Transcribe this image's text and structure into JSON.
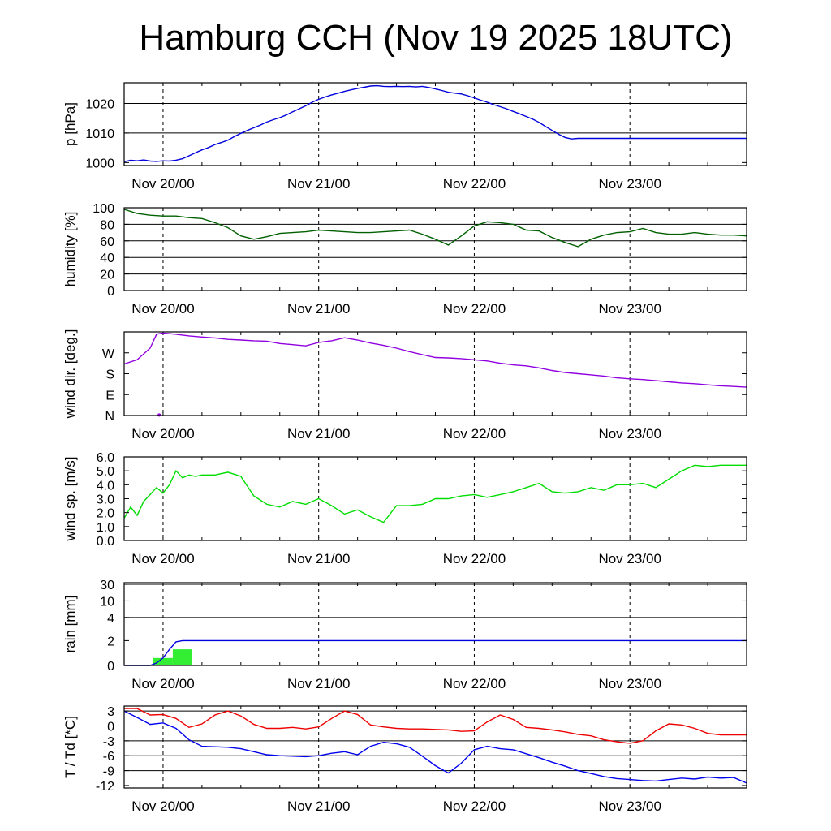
{
  "title": "Hamburg CCH (Nov 19 2025 18UTC)",
  "chart_data": [
    {
      "id": "pressure",
      "type": "line",
      "ylabel": "p [hPa]",
      "ylim": [
        999,
        1027
      ],
      "yticks": [
        1000,
        1010,
        1020
      ],
      "ytick_labels": [
        "1000",
        "1010",
        "1020"
      ],
      "grid": [
        1010,
        1020
      ],
      "xlabel_ticks": [
        "Nov 20/00",
        "Nov 21/00",
        "Nov 22/00",
        "Nov 23/00"
      ],
      "series": [
        {
          "name": "pressure",
          "color": "#0000dd",
          "x": [
            0,
            1,
            2,
            3,
            4,
            5,
            6,
            7,
            8,
            9,
            10,
            11,
            12,
            13,
            14,
            15,
            16,
            17,
            18,
            19,
            20,
            21,
            22,
            23,
            24,
            25,
            26,
            27,
            28,
            29,
            30,
            31,
            32,
            33,
            34,
            35,
            36,
            37,
            38,
            39,
            40,
            41,
            42,
            43,
            44,
            45,
            46,
            47,
            48,
            49,
            50,
            51,
            52,
            53,
            54,
            55,
            56,
            57,
            58,
            59,
            60,
            61,
            62,
            63,
            64,
            65,
            66,
            67,
            68,
            69,
            70,
            71,
            72,
            73,
            74,
            75,
            76,
            77,
            78,
            79,
            80,
            81,
            82,
            83,
            84,
            85,
            86,
            87,
            88,
            89,
            90,
            91,
            92,
            93,
            94,
            95,
            96
          ],
          "values": [
            1000.3,
            1000.8,
            1000.6,
            1000.9,
            1000.5,
            1000.4,
            1000.6,
            1000.5,
            1000.8,
            1001.3,
            1002.3,
            1003.3,
            1004.3,
            1005.1,
            1006.1,
            1006.8,
            1007.6,
            1008.8,
            1009.9,
            1010.9,
            1011.8,
            1012.7,
            1013.7,
            1014.5,
            1015.2,
            1016.1,
            1017.2,
            1018.2,
            1019.2,
            1020.4,
            1021.4,
            1022.2,
            1022.9,
            1023.5,
            1024.1,
            1024.6,
            1025.1,
            1025.5,
            1025.9,
            1026.0,
            1025.8,
            1025.7,
            1025.8,
            1025.7,
            1025.8,
            1025.6,
            1025.8,
            1025.4,
            1024.9,
            1024.4,
            1023.8,
            1023.5,
            1023.2,
            1022.6,
            1021.9,
            1021.1,
            1020.4,
            1019.6,
            1018.9,
            1018.2,
            1017.3,
            1016.5,
            1015.6,
            1014.7,
            1013.6,
            1012.2,
            1010.9,
            1009.6,
            1008.5,
            1008.0,
            1008.2,
            1008.2,
            1008.2,
            1008.2,
            1008.2,
            1008.2,
            1008.2,
            1008.2,
            1008.2,
            1008.2,
            1008.2,
            1008.2,
            1008.2,
            1008.2,
            1008.2,
            1008.2,
            1008.2,
            1008.2,
            1008.2,
            1008.2,
            1008.2,
            1008.2,
            1008.2,
            1008.2,
            1008.2,
            1008.2,
            1008.2
          ]
        }
      ]
    },
    {
      "id": "humidity",
      "type": "line",
      "ylabel": "humidity [%]",
      "ylim": [
        0,
        100
      ],
      "yticks": [
        0,
        20,
        40,
        60,
        80,
        100
      ],
      "ytick_labels": [
        "0",
        "20",
        "40",
        "60",
        "80",
        "100"
      ],
      "grid": [
        20,
        40,
        60,
        80
      ],
      "xlabel_ticks": [
        "Nov 20/00",
        "Nov 21/00",
        "Nov 22/00",
        "Nov 23/00"
      ],
      "series": [
        {
          "name": "relative humidity",
          "color": "#006000",
          "x": [
            0,
            2,
            4,
            6,
            8,
            10,
            12,
            14,
            16,
            18,
            20,
            22,
            24,
            26,
            28,
            30,
            32,
            34,
            36,
            38,
            40,
            42,
            44,
            46,
            48,
            50,
            52,
            54,
            56,
            58,
            60,
            62,
            64,
            66,
            68,
            70,
            72,
            74,
            76,
            78,
            80,
            82,
            84,
            86,
            88,
            90,
            92,
            94,
            96
          ],
          "values": [
            98,
            93,
            91,
            90,
            90,
            88,
            87,
            82,
            76,
            66,
            62,
            65,
            69,
            70,
            71,
            73,
            72,
            71,
            70,
            70,
            71,
            72,
            73,
            68,
            62,
            55,
            66,
            78,
            83,
            82,
            80,
            73,
            72,
            64,
            58,
            53,
            62,
            67,
            70,
            71,
            75,
            70,
            68,
            68,
            70,
            68,
            67,
            67,
            66
          ]
        }
      ]
    },
    {
      "id": "wind_direction",
      "type": "line",
      "ylabel": "wind dir. [deg.]",
      "ylim": [
        0,
        360
      ],
      "yticks": [
        0,
        90,
        180,
        270
      ],
      "ytick_labels": [
        "N",
        "E",
        "S",
        "W"
      ],
      "grid": [],
      "xlabel_ticks": [
        "Nov 20/00",
        "Nov 21/00",
        "Nov 22/00",
        "Nov 23/00"
      ],
      "series": [
        {
          "name": "wind direction",
          "color": "#9000e0",
          "x": [
            0,
            2,
            4,
            5,
            6,
            8,
            10,
            12,
            14,
            16,
            18,
            20,
            22,
            24,
            26,
            28,
            30,
            32,
            34,
            36,
            38,
            40,
            42,
            44,
            46,
            48,
            50,
            52,
            54,
            56,
            58,
            60,
            62,
            64,
            66,
            68,
            70,
            72,
            74,
            76,
            78,
            80,
            82,
            84,
            86,
            88,
            90,
            92,
            94,
            96
          ],
          "values": [
            222,
            240,
            290,
            350,
            355,
            350,
            343,
            338,
            334,
            328,
            325,
            322,
            320,
            310,
            305,
            300,
            315,
            322,
            335,
            325,
            312,
            302,
            290,
            275,
            262,
            250,
            248,
            245,
            240,
            235,
            225,
            218,
            214,
            205,
            194,
            185,
            180,
            175,
            170,
            162,
            158,
            155,
            150,
            145,
            140,
            137,
            132,
            128,
            125,
            122
          ]
        }
      ]
    },
    {
      "id": "wind_speed",
      "type": "line",
      "ylabel": "wind sp. [m/s]",
      "ylim": [
        0,
        6
      ],
      "yticks": [
        0,
        1,
        2,
        3,
        4,
        5,
        6
      ],
      "ytick_labels": [
        "0.0",
        "1.0",
        "2.0",
        "3.0",
        "4.0",
        "5.0",
        "6.0"
      ],
      "grid": [],
      "xlabel_ticks": [
        "Nov 20/00",
        "Nov 21/00",
        "Nov 22/00",
        "Nov 23/00"
      ],
      "series": [
        {
          "name": "wind speed",
          "color": "#00dd00",
          "x": [
            0,
            1,
            2,
            3,
            4,
            5,
            6,
            7,
            8,
            9,
            10,
            11,
            12,
            14,
            16,
            18,
            20,
            22,
            24,
            26,
            28,
            30,
            32,
            34,
            36,
            38,
            40,
            42,
            44,
            46,
            48,
            50,
            52,
            54,
            56,
            58,
            60,
            62,
            64,
            66,
            68,
            70,
            72,
            74,
            76,
            78,
            80,
            82,
            84,
            86,
            88,
            90,
            92,
            94,
            96
          ],
          "values": [
            1.6,
            2.4,
            1.8,
            2.8,
            3.3,
            3.8,
            3.4,
            4.0,
            5.0,
            4.5,
            4.7,
            4.6,
            4.7,
            4.7,
            4.9,
            4.6,
            3.2,
            2.6,
            2.4,
            2.8,
            2.6,
            3.0,
            2.5,
            1.9,
            2.2,
            1.7,
            1.3,
            2.5,
            2.5,
            2.6,
            3.0,
            3.0,
            3.2,
            3.3,
            3.1,
            3.3,
            3.5,
            3.8,
            4.1,
            3.5,
            3.4,
            3.5,
            3.8,
            3.6,
            4.0,
            4.0,
            4.1,
            3.8,
            4.4,
            5.0,
            5.4,
            5.3,
            5.4,
            5.4,
            5.4
          ]
        }
      ]
    },
    {
      "id": "rain",
      "type": "bar",
      "ylabel": "rain [mm]",
      "ylim": [
        0,
        30
      ],
      "scale": "nonlinear",
      "yticks": [
        0,
        2,
        4,
        10,
        30
      ],
      "ytick_labels": [
        "0",
        "2",
        "4",
        "10",
        "30"
      ],
      "grid": [
        4,
        10,
        30
      ],
      "xlabel_ticks": [
        "Nov 20/00",
        "Nov 21/00",
        "Nov 22/00",
        "Nov 23/00"
      ],
      "bars": [
        {
          "x_start": 4.5,
          "x_end": 7.5,
          "value": 0.6
        },
        {
          "x_start": 7.5,
          "x_end": 10.5,
          "value": 1.3
        }
      ],
      "series": [
        {
          "name": "accumulated rain",
          "color": "#0000dd",
          "x": [
            0,
            4,
            5,
            6,
            7,
            8,
            9,
            96
          ],
          "values": [
            0,
            0,
            0.2,
            0.6,
            1.3,
            1.9,
            2.0,
            2.0
          ]
        }
      ],
      "bar_color": "#33ee33"
    },
    {
      "id": "temperature",
      "type": "line",
      "ylabel": "T / Td [*C]",
      "ylim": [
        -12.5,
        4
      ],
      "yticks": [
        -12,
        -9,
        -6,
        -3,
        0,
        3
      ],
      "ytick_labels": [
        "-12",
        "-9",
        "-6",
        "-3",
        "0",
        "3"
      ],
      "grid": [
        -9,
        -6,
        -3,
        0,
        3
      ],
      "xlabel_ticks": [
        "Nov 20/00",
        "Nov 21/00",
        "Nov 22/00",
        "Nov 23/00"
      ],
      "series": [
        {
          "name": "temperature",
          "color": "#ee0000",
          "x": [
            0,
            2,
            4,
            6,
            8,
            10,
            12,
            14,
            16,
            18,
            20,
            22,
            24,
            26,
            28,
            30,
            32,
            34,
            36,
            38,
            40,
            42,
            44,
            46,
            48,
            50,
            52,
            54,
            56,
            58,
            60,
            62,
            64,
            66,
            68,
            70,
            72,
            74,
            76,
            78,
            80,
            82,
            84,
            86,
            88,
            90,
            92,
            94,
            96
          ],
          "values": [
            3.5,
            3.5,
            2.2,
            2.3,
            1.5,
            -0.3,
            0.4,
            2.2,
            3.0,
            2.0,
            0.3,
            -0.5,
            -0.5,
            -0.3,
            -0.6,
            -0.2,
            1.5,
            3.0,
            2.3,
            0.2,
            -0.2,
            -0.5,
            -0.6,
            -0.6,
            -0.7,
            -0.8,
            -1.1,
            -1.0,
            0.8,
            2.2,
            1.3,
            -0.3,
            -0.5,
            -0.8,
            -1.2,
            -1.7,
            -2.0,
            -2.8,
            -3.2,
            -3.5,
            -3.0,
            -1.0,
            0.4,
            0.2,
            -0.5,
            -1.5,
            -1.8,
            -1.8,
            -1.8
          ]
        },
        {
          "name": "dew point",
          "color": "#0000ee",
          "x": [
            0,
            2,
            4,
            6,
            8,
            10,
            12,
            14,
            16,
            18,
            20,
            22,
            24,
            26,
            28,
            30,
            32,
            34,
            36,
            38,
            40,
            42,
            44,
            46,
            48,
            50,
            52,
            54,
            56,
            58,
            60,
            62,
            64,
            66,
            68,
            70,
            72,
            74,
            76,
            78,
            80,
            82,
            84,
            86,
            88,
            90,
            92,
            94,
            96
          ],
          "values": [
            3.0,
            1.7,
            0.3,
            0.6,
            -0.5,
            -2.8,
            -4.1,
            -4.2,
            -4.3,
            -4.6,
            -5.2,
            -5.8,
            -6.0,
            -6.1,
            -6.2,
            -6.0,
            -5.5,
            -5.2,
            -5.8,
            -4.1,
            -3.3,
            -3.6,
            -4.3,
            -6.1,
            -8.0,
            -9.5,
            -7.5,
            -4.8,
            -4.1,
            -4.6,
            -4.8,
            -5.6,
            -6.4,
            -7.3,
            -8.1,
            -9.0,
            -9.6,
            -10.2,
            -10.6,
            -10.8,
            -11.0,
            -11.1,
            -10.8,
            -10.5,
            -10.7,
            -10.3,
            -10.5,
            -10.4,
            -11.5
          ]
        }
      ]
    }
  ]
}
